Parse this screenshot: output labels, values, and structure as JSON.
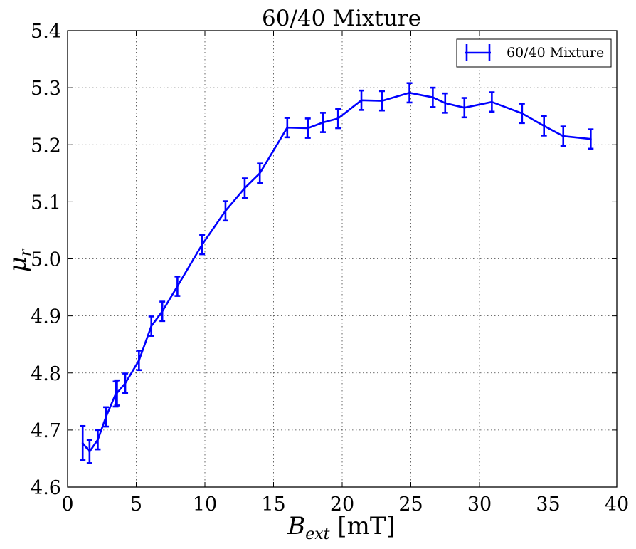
{
  "chart_data": {
    "type": "line",
    "title": "60/40 Mixture",
    "xlabel": {
      "main": "B",
      "sub": "ext",
      "unit": " [mT]"
    },
    "ylabel": {
      "main": "μ",
      "sub": "r"
    },
    "xlim": [
      0,
      40
    ],
    "ylim": [
      4.6,
      5.4
    ],
    "xticks": [
      0,
      5,
      10,
      15,
      20,
      25,
      30,
      35,
      40
    ],
    "yticks": [
      4.6,
      4.7,
      4.8,
      4.9,
      5.0,
      5.1,
      5.2,
      5.3,
      5.4
    ],
    "xtick_labels": [
      "0",
      "5",
      "10",
      "15",
      "20",
      "25",
      "30",
      "35",
      "40"
    ],
    "ytick_labels": [
      "4.6",
      "4.7",
      "4.8",
      "4.9",
      "5.0",
      "5.1",
      "5.2",
      "5.3",
      "5.4"
    ],
    "grid": true,
    "legend_position": "top-right",
    "series": [
      {
        "name": "60/40 Mixture",
        "color": "#0000ff",
        "x": [
          1.1,
          1.6,
          2.2,
          2.8,
          3.5,
          3.6,
          4.2,
          5.2,
          6.1,
          6.9,
          8.0,
          9.8,
          11.5,
          12.9,
          14.0,
          16.0,
          17.5,
          18.6,
          19.7,
          21.4,
          22.9,
          24.9,
          26.6,
          27.5,
          28.9,
          30.9,
          33.1,
          34.7,
          36.1,
          38.1
        ],
        "y": [
          4.677,
          4.662,
          4.683,
          4.723,
          4.763,
          4.765,
          4.782,
          4.822,
          4.882,
          4.908,
          4.952,
          5.025,
          5.084,
          5.124,
          5.15,
          5.23,
          5.229,
          5.239,
          5.246,
          5.278,
          5.277,
          5.291,
          5.283,
          5.273,
          5.265,
          5.275,
          5.255,
          5.233,
          5.215,
          5.21
        ],
        "err": [
          0.03,
          0.02,
          0.017,
          0.017,
          0.022,
          0.022,
          0.017,
          0.017,
          0.017,
          0.017,
          0.017,
          0.017,
          0.017,
          0.017,
          0.017,
          0.017,
          0.017,
          0.017,
          0.017,
          0.017,
          0.017,
          0.017,
          0.017,
          0.017,
          0.017,
          0.017,
          0.017,
          0.017,
          0.017,
          0.017
        ]
      }
    ]
  }
}
